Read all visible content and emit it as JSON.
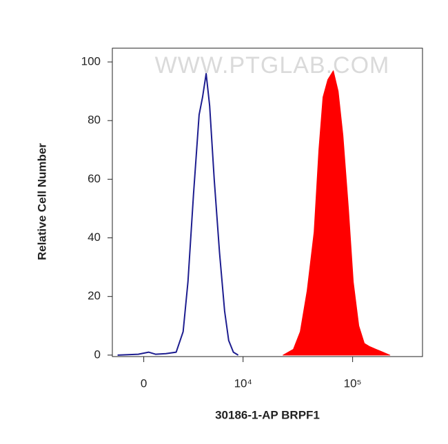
{
  "chart_data": {
    "type": "histogram-overlay",
    "watermark": "WWW.PTGLAB.COM",
    "xlabel": "30186-1-AP BRPF1",
    "ylabel": "Relative Cell Number",
    "xscale": "biexponential",
    "xlim": [
      -1800,
      430000
    ],
    "xticks": [
      {
        "value": 0,
        "label": "0"
      },
      {
        "value": 10000,
        "label": "10⁴"
      },
      {
        "value": 100000,
        "label": "10⁵"
      }
    ],
    "ylim": [
      -0.5,
      104.7
    ],
    "yticks": [
      0,
      20,
      40,
      60,
      80,
      100
    ],
    "series": [
      {
        "color": "#1c1c8f",
        "filled": false,
        "x": [
          -1468,
          -295,
          258,
          632,
          1219,
          1864,
          2343,
          2705,
          3158,
          3654,
          3991,
          4355,
          4736,
          5273,
          5948,
          6679,
          7303,
          8106,
          9000
        ],
        "values": [
          0,
          0.3,
          1,
          0.3,
          0.5,
          1,
          8,
          25,
          55,
          82,
          88,
          96,
          85,
          60,
          35,
          15,
          5,
          1,
          0
        ]
      },
      {
        "color": "#ff0000",
        "filled": true,
        "x": [
          23300,
          28950,
          33450,
          38660,
          44670,
          49400,
          53850,
          59550,
          66840,
          73950,
          81750,
          91670,
          101400,
          113800,
          127600,
          141200,
          163100,
          188400,
          217600
        ],
        "values": [
          0,
          2,
          8,
          22,
          42,
          70,
          88,
          94,
          97,
          90,
          75,
          50,
          25,
          10,
          4,
          3,
          2,
          1,
          0
        ]
      }
    ]
  }
}
